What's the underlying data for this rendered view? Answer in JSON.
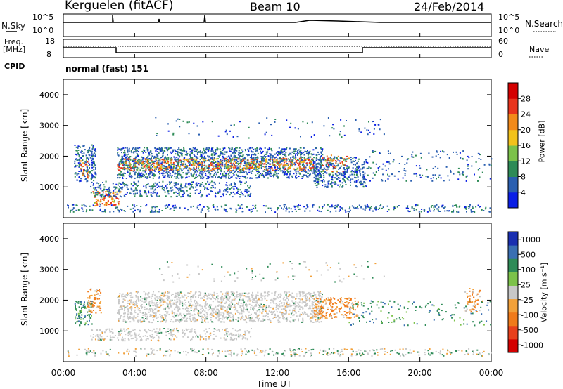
{
  "header": {
    "station": "Kerguelen (fitACF)",
    "beam": "Beam 10",
    "date": "24/Feb/2014"
  },
  "top_panel": {
    "nsky_label": "N.Sky",
    "nsearch_label": "N.Search",
    "nsky_ticks": [
      "10^5",
      "10^0"
    ],
    "nsearch_ticks": [
      "10^5",
      "10^0"
    ],
    "freq_label_1": "Freq.",
    "freq_label_2": "[MHz]",
    "freq_ticks": [
      "18",
      "8"
    ],
    "nave_label": "Nave",
    "nave_ticks": [
      "60",
      "0"
    ],
    "cpid_label": "CPID",
    "cpid_value": "normal (fast) 151"
  },
  "chart_data": [
    {
      "type": "heatmap",
      "name": "power",
      "ylabel": "Slant Range [km]",
      "yticks": [
        "1000",
        "2000",
        "3000",
        "4000"
      ],
      "ylim": [
        0,
        4500
      ],
      "xlim": [
        0,
        24
      ],
      "colorbar_label": "Power [dB]",
      "colorbar_ticks": [
        "4",
        "8",
        "12",
        "16",
        "20",
        "24",
        "28"
      ],
      "colorbar_range": [
        0,
        32
      ],
      "colorbar_colors": [
        "#0a1ee6",
        "#2a5fb0",
        "#2e8b57",
        "#7cc24a",
        "#f2c21b",
        "#f28a1a",
        "#e8341c",
        "#d40000"
      ]
    },
    {
      "type": "heatmap",
      "name": "velocity",
      "ylabel": "Slant Range [km]",
      "yticks": [
        "1000",
        "2000",
        "3000",
        "4000"
      ],
      "ylim": [
        0,
        4500
      ],
      "xlim": [
        0,
        24
      ],
      "colorbar_label": "Velocity [m s⁻¹]",
      "colorbar_ticks": [
        "1000",
        "500",
        "100",
        "25",
        "-25",
        "-100",
        "-500",
        "-1000"
      ],
      "colorbar_colors": [
        "#1a2fb0",
        "#3a6fb3",
        "#2e8b57",
        "#7cc24a",
        "#c8c8c8",
        "#f2a13a",
        "#f07a1a",
        "#e8401c",
        "#d40000"
      ]
    }
  ],
  "xaxis": {
    "ticks": [
      "00:00",
      "04:00",
      "08:00",
      "12:00",
      "16:00",
      "20:00",
      "00:00"
    ],
    "label": "Time UT"
  }
}
